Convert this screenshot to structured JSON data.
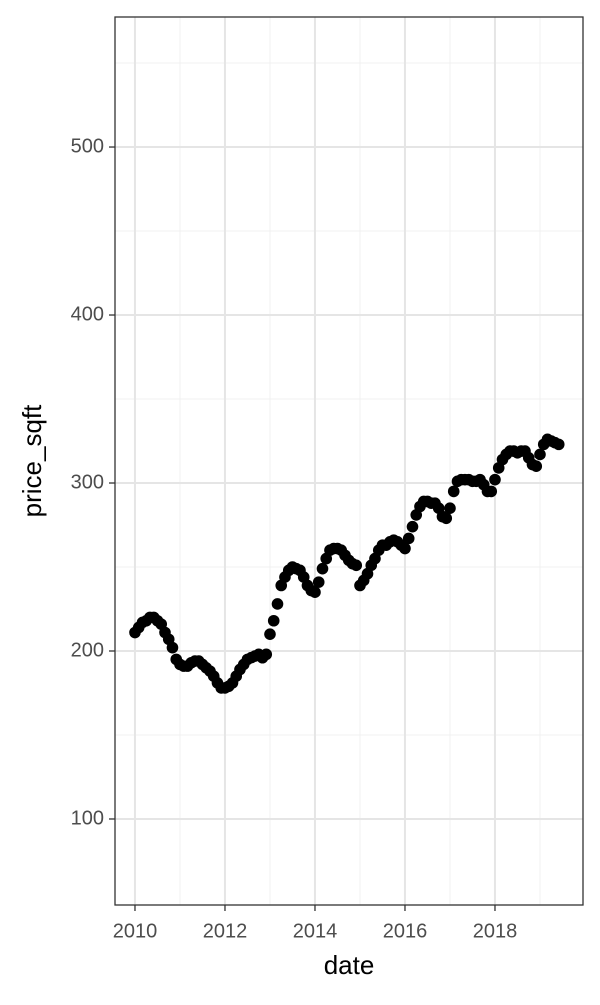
{
  "chart_data": {
    "type": "scatter",
    "x_label": "date",
    "y_label": "price_sqft",
    "x": [
      2010,
      2010.083,
      2010.167,
      2010.25,
      2010.333,
      2010.417,
      2010.5,
      2010.583,
      2010.667,
      2010.75,
      2010.833,
      2010.917,
      2011,
      2011.083,
      2011.167,
      2011.25,
      2011.333,
      2011.417,
      2011.5,
      2011.583,
      2011.667,
      2011.75,
      2011.833,
      2011.917,
      2012,
      2012.083,
      2012.167,
      2012.25,
      2012.333,
      2012.417,
      2012.5,
      2012.583,
      2012.667,
      2012.75,
      2012.833,
      2012.917,
      2013,
      2013.083,
      2013.167,
      2013.25,
      2013.333,
      2013.417,
      2013.5,
      2013.583,
      2013.667,
      2013.75,
      2013.833,
      2013.917,
      2014,
      2014.083,
      2014.167,
      2014.25,
      2014.333,
      2014.417,
      2014.5,
      2014.583,
      2014.667,
      2014.75,
      2014.833,
      2014.917,
      2015,
      2015.083,
      2015.167,
      2015.25,
      2015.333,
      2015.417,
      2015.5,
      2015.583,
      2015.667,
      2015.75,
      2015.833,
      2015.917,
      2016,
      2016.083,
      2016.167,
      2016.25,
      2016.333,
      2016.417,
      2016.5,
      2016.583,
      2016.667,
      2016.75,
      2016.833,
      2016.917,
      2017,
      2017.083,
      2017.167,
      2017.25,
      2017.333,
      2017.417,
      2017.5,
      2017.583,
      2017.667,
      2017.75,
      2017.833,
      2017.917,
      2018,
      2018.083,
      2018.167,
      2018.25,
      2018.333,
      2018.417,
      2018.5,
      2018.583,
      2018.667,
      2018.75,
      2018.833,
      2018.917,
      2019,
      2019.083,
      2019.167,
      2019.25,
      2019.333,
      2019.417
    ],
    "values": [
      211,
      214,
      217,
      218,
      220,
      220,
      218,
      216,
      211,
      207,
      202,
      195,
      192,
      191,
      191,
      193,
      194,
      194,
      192,
      190,
      188,
      185,
      181,
      178,
      178,
      179,
      181,
      185,
      189,
      192,
      195,
      196,
      197,
      198,
      196,
      198,
      210,
      218,
      228,
      239,
      244,
      248,
      250,
      249,
      248,
      244,
      239,
      236,
      235,
      241,
      249,
      255,
      260,
      261,
      261,
      260,
      257,
      254,
      252,
      251,
      239,
      242,
      246,
      251,
      255,
      260,
      263,
      263,
      265,
      266,
      265,
      263,
      261,
      267,
      274,
      281,
      286,
      289,
      289,
      288,
      288,
      285,
      280,
      279,
      285,
      295,
      301,
      302,
      302,
      302,
      301,
      301,
      302,
      299,
      295,
      295,
      302,
      309,
      314,
      317,
      319,
      319,
      318,
      319,
      319,
      315,
      311,
      310,
      317,
      323,
      326,
      325,
      324,
      323
    ],
    "color": "#000000",
    "xlim": [
      2009.556,
      2019.956
    ],
    "xticks": [
      2010,
      2012,
      2014,
      2016,
      2018
    ],
    "x_minor_ticks": [
      2011,
      2013,
      2015,
      2017,
      2019
    ],
    "ylim": [
      48.8,
      577.4
    ],
    "yticks": [
      100,
      200,
      300,
      400,
      500
    ],
    "y_minor_ticks": [
      150,
      250,
      350,
      450,
      550
    ],
    "grid": true
  }
}
